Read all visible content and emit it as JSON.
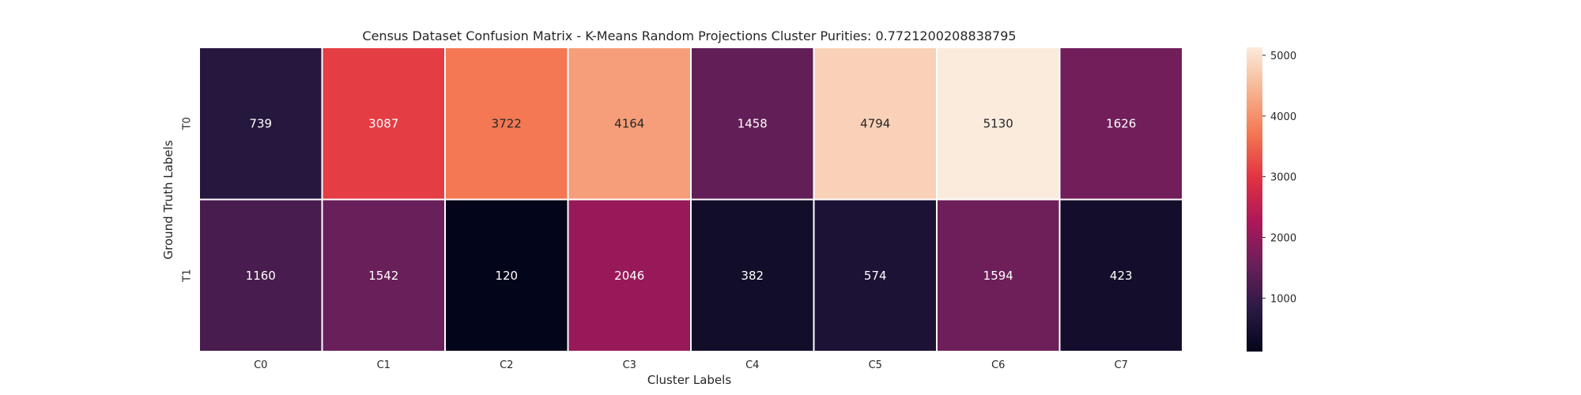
{
  "chart_data": {
    "type": "heatmap",
    "title": "Census Dataset Confusion Matrix - K-Means Random Projections Cluster Purities: 0.7721200208838795",
    "xlabel": "Cluster Labels",
    "ylabel": "Ground Truth Labels",
    "x_categories": [
      "C0",
      "C1",
      "C2",
      "C3",
      "C4",
      "C5",
      "C6",
      "C7"
    ],
    "y_categories": [
      "T0",
      "T1"
    ],
    "values": [
      [
        739,
        3087,
        3722,
        4164,
        1458,
        4794,
        5130,
        1626
      ],
      [
        1160,
        1542,
        120,
        2046,
        382,
        574,
        1594,
        423
      ]
    ],
    "colorbar": {
      "ticks": [
        1000,
        2000,
        3000,
        4000,
        5000
      ],
      "tick_labels": [
        "1000",
        "2000",
        "3000",
        "4000",
        "5000"
      ],
      "range": [
        120,
        5130
      ]
    },
    "colormap": [
      "#03051a",
      "#2b1a44",
      "#6a1f5a",
      "#ad1759",
      "#e13342",
      "#f37651",
      "#f6b48f",
      "#faebdd"
    ],
    "grid": false,
    "legend": "colorbar-right"
  }
}
